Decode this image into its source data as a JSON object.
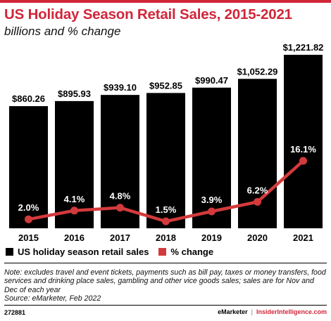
{
  "header": {
    "title": "US Holiday Season Retail Sales, 2015-2021",
    "subtitle": "billions and % change"
  },
  "colors": {
    "accent": "#d0263a",
    "bar": "#000000",
    "line": "#d33a3c"
  },
  "chart_data": {
    "type": "bar",
    "categories": [
      "2015",
      "2016",
      "2017",
      "2018",
      "2019",
      "2020",
      "2021"
    ],
    "series": [
      {
        "name": "US holiday season retail sales",
        "type": "bar",
        "values": [
          860.26,
          895.93,
          939.1,
          952.85,
          990.47,
          1052.29,
          1221.82
        ],
        "labels": [
          "$860.26",
          "$895.93",
          "$939.10",
          "$952.85",
          "$990.47",
          "$1,052.29",
          "$1,221.82"
        ]
      },
      {
        "name": "% change",
        "type": "line",
        "values": [
          2.0,
          4.1,
          4.8,
          1.5,
          3.9,
          6.2,
          16.1
        ],
        "labels": [
          "2.0%",
          "4.1%",
          "4.8%",
          "1.5%",
          "3.9%",
          "6.2%",
          "16.1%"
        ]
      }
    ],
    "ylim": [
      0,
      1221.82
    ],
    "grid": false,
    "legend": "bottom-left"
  },
  "legend": {
    "items": [
      "US holiday season retail sales",
      "% change"
    ]
  },
  "note": "Note: excludes travel and event tickets, payments such as bill pay, taxes or money transfers, food services and drinking place sales, gambling and other vice goods sales; sales are for Nov and Dec of each year",
  "source": "Source: eMarketer, Feb 2022",
  "footer": {
    "chart_id": "272881",
    "brand": "eMarketer",
    "brand2": "InsiderIntelligence.com"
  }
}
